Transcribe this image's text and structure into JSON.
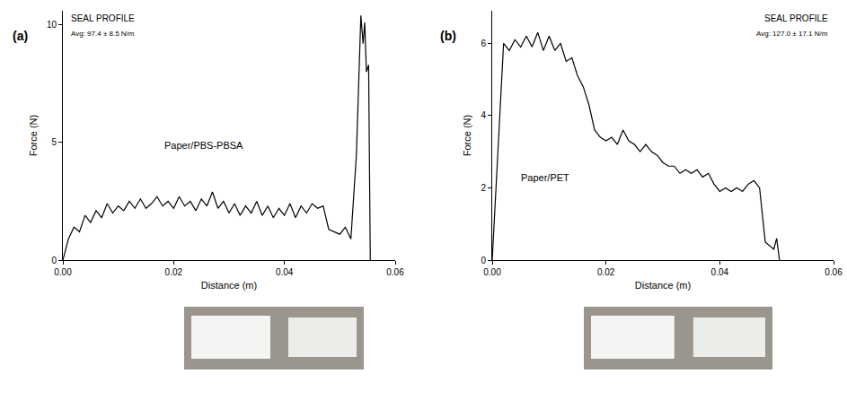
{
  "chart_data": [
    {
      "type": "line",
      "label": "(a)",
      "x_label": "Distance (m)",
      "y_label": "Force (N)",
      "annotations": [
        "SEAL PROFILE",
        "Avg: 97.4 ± 8.5 N/m",
        "Paper/PBS-PBSA"
      ],
      "color": "#000000",
      "grid": false,
      "xlim": [
        0,
        0.06
      ],
      "xticks": [
        {
          "value": 0,
          "label": "0.00"
        },
        {
          "value": 0.02,
          "label": "0.02"
        },
        {
          "value": 0.04,
          "label": "0.04"
        },
        {
          "value": 0.06,
          "label": "0.06"
        }
      ],
      "ylim": [
        0,
        10.6
      ],
      "yticks": [
        0,
        5,
        10
      ],
      "x": [
        0,
        0.001,
        0.002,
        0.003,
        0.004,
        0.005,
        0.006,
        0.007,
        0.008,
        0.009,
        0.01,
        0.011,
        0.012,
        0.013,
        0.014,
        0.015,
        0.016,
        0.017,
        0.018,
        0.019,
        0.02,
        0.021,
        0.022,
        0.023,
        0.024,
        0.025,
        0.026,
        0.027,
        0.028,
        0.029,
        0.03,
        0.031,
        0.032,
        0.033,
        0.034,
        0.035,
        0.036,
        0.037,
        0.038,
        0.039,
        0.04,
        0.041,
        0.042,
        0.043,
        0.044,
        0.045,
        0.046,
        0.047,
        0.048,
        0.049,
        0.05,
        0.051,
        0.052,
        0.053,
        0.0538,
        0.0542,
        0.0545,
        0.0548,
        0.0552,
        0.0555
      ],
      "values": [
        0,
        0.9,
        1.4,
        1.2,
        1.9,
        1.6,
        2.1,
        1.8,
        2.4,
        2.0,
        2.3,
        2.1,
        2.5,
        2.2,
        2.6,
        2.2,
        2.4,
        2.7,
        2.3,
        2.5,
        2.2,
        2.7,
        2.3,
        2.5,
        2.1,
        2.6,
        2.3,
        2.9,
        2.2,
        2.5,
        2.0,
        2.4,
        1.9,
        2.3,
        2.0,
        2.5,
        1.9,
        2.3,
        1.8,
        2.2,
        1.9,
        2.4,
        1.8,
        2.3,
        2.0,
        2.4,
        2.2,
        2.3,
        1.3,
        1.2,
        1.1,
        1.4,
        0.9,
        4.5,
        10.4,
        9.2,
        10.1,
        8.0,
        8.3,
        0
      ]
    },
    {
      "type": "line",
      "label": "(b)",
      "x_label": "Distance (m)",
      "y_label": "Force (N)",
      "annotations": [
        "SEAL PROFILE",
        "Avg: 127.0 ± 17.1 N/m",
        "Paper/PET"
      ],
      "color": "#000000",
      "grid": false,
      "xlim": [
        0,
        0.06
      ],
      "xticks": [
        {
          "value": 0,
          "label": "0.00"
        },
        {
          "value": 0.02,
          "label": "0.02"
        },
        {
          "value": 0.04,
          "label": "0.04"
        },
        {
          "value": 0.06,
          "label": "0.06"
        }
      ],
      "ylim": [
        0,
        6.9
      ],
      "yticks": [
        0,
        2,
        4,
        6
      ],
      "x": [
        0,
        0.0015,
        0.002,
        0.003,
        0.004,
        0.005,
        0.006,
        0.007,
        0.008,
        0.009,
        0.01,
        0.011,
        0.012,
        0.013,
        0.014,
        0.015,
        0.016,
        0.017,
        0.018,
        0.019,
        0.02,
        0.021,
        0.022,
        0.023,
        0.024,
        0.025,
        0.026,
        0.027,
        0.028,
        0.029,
        0.03,
        0.031,
        0.032,
        0.033,
        0.034,
        0.035,
        0.036,
        0.037,
        0.038,
        0.039,
        0.04,
        0.041,
        0.042,
        0.043,
        0.044,
        0.045,
        0.046,
        0.047,
        0.0475,
        0.048,
        0.0495,
        0.05,
        0.0505
      ],
      "values": [
        0,
        4.5,
        6.0,
        5.8,
        6.1,
        5.9,
        6.2,
        5.9,
        6.3,
        5.8,
        6.2,
        5.8,
        6.0,
        5.5,
        5.6,
        5.1,
        4.8,
        4.3,
        3.6,
        3.4,
        3.3,
        3.4,
        3.2,
        3.6,
        3.3,
        3.2,
        3.0,
        3.2,
        3.0,
        2.9,
        2.7,
        2.6,
        2.6,
        2.4,
        2.5,
        2.4,
        2.5,
        2.3,
        2.4,
        2.1,
        1.9,
        2.0,
        1.9,
        2.0,
        1.9,
        2.1,
        2.2,
        2.0,
        1.2,
        0.5,
        0.3,
        0.6,
        0
      ]
    }
  ]
}
